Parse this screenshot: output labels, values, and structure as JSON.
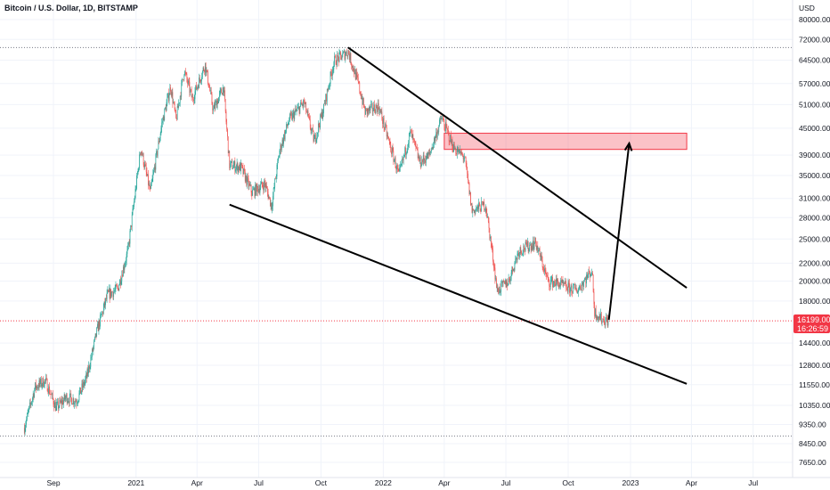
{
  "header": {
    "title": "Bitcoin / U.S. Dollar, 1D, BITSTAMP",
    "currency": "USD"
  },
  "price_tag": {
    "price": "16199.00",
    "countdown": "16:26:59",
    "color": "#f23645"
  },
  "chart_data": {
    "type": "candlestick",
    "title": "Bitcoin / U.S. Dollar, 1D, BITSTAMP",
    "ylabel": "USD",
    "yscale": "log",
    "ylim": [
      7200,
      90000
    ],
    "y_ticks": [
      "80000.00",
      "72000.00",
      "64500.00",
      "57000.00",
      "51000.00",
      "45000.00",
      "39000.00",
      "35000.00",
      "31000.00",
      "28000.00",
      "25000.00",
      "22000.00",
      "20000.00",
      "18000.00",
      "14400.00",
      "12800.00",
      "11550.00",
      "10350.00",
      "9350.00",
      "8450.00",
      "7650.00"
    ],
    "x_ticks": [
      "Sep",
      "2021",
      "Apr",
      "Jul",
      "Oct",
      "2022",
      "Apr",
      "Jul",
      "Oct",
      "2023",
      "Apr",
      "Jul"
    ],
    "up_color": "#26a69a",
    "down_color": "#ef5350",
    "series": [
      {
        "x": "2020-07-20",
        "y": 9200
      },
      {
        "x": "2020-08-05",
        "y": 11400
      },
      {
        "x": "2020-08-20",
        "y": 11800
      },
      {
        "x": "2020-09-05",
        "y": 10200
      },
      {
        "x": "2020-09-20",
        "y": 10800
      },
      {
        "x": "2020-10-05",
        "y": 10600
      },
      {
        "x": "2020-10-20",
        "y": 12000
      },
      {
        "x": "2020-11-05",
        "y": 15500
      },
      {
        "x": "2020-11-20",
        "y": 18600
      },
      {
        "x": "2020-12-05",
        "y": 19200
      },
      {
        "x": "2020-12-20",
        "y": 23500
      },
      {
        "x": "2021-01-08",
        "y": 40500
      },
      {
        "x": "2021-01-22",
        "y": 32000
      },
      {
        "x": "2021-02-08",
        "y": 46000
      },
      {
        "x": "2021-02-21",
        "y": 56000
      },
      {
        "x": "2021-03-01",
        "y": 47000
      },
      {
        "x": "2021-03-13",
        "y": 61000
      },
      {
        "x": "2021-03-25",
        "y": 52500
      },
      {
        "x": "2021-04-13",
        "y": 63000
      },
      {
        "x": "2021-04-25",
        "y": 49500
      },
      {
        "x": "2021-05-10",
        "y": 56000
      },
      {
        "x": "2021-05-19",
        "y": 37000
      },
      {
        "x": "2021-06-05",
        "y": 36500
      },
      {
        "x": "2021-06-21",
        "y": 32000
      },
      {
        "x": "2021-07-10",
        "y": 33500
      },
      {
        "x": "2021-07-20",
        "y": 29800
      },
      {
        "x": "2021-08-01",
        "y": 40000
      },
      {
        "x": "2021-08-15",
        "y": 47000
      },
      {
        "x": "2021-09-06",
        "y": 51500
      },
      {
        "x": "2021-09-21",
        "y": 42000
      },
      {
        "x": "2021-10-05",
        "y": 50000
      },
      {
        "x": "2021-10-20",
        "y": 64000
      },
      {
        "x": "2021-11-10",
        "y": 67500
      },
      {
        "x": "2021-11-25",
        "y": 57000
      },
      {
        "x": "2021-12-05",
        "y": 49000
      },
      {
        "x": "2021-12-25",
        "y": 50500
      },
      {
        "x": "2022-01-10",
        "y": 41500
      },
      {
        "x": "2022-01-24",
        "y": 35000
      },
      {
        "x": "2022-02-10",
        "y": 44000
      },
      {
        "x": "2022-02-24",
        "y": 37500
      },
      {
        "x": "2022-03-10",
        "y": 39000
      },
      {
        "x": "2022-03-28",
        "y": 47500
      },
      {
        "x": "2022-04-15",
        "y": 40500
      },
      {
        "x": "2022-05-01",
        "y": 38500
      },
      {
        "x": "2022-05-12",
        "y": 29000
      },
      {
        "x": "2022-06-01",
        "y": 30000
      },
      {
        "x": "2022-06-13",
        "y": 22000
      },
      {
        "x": "2022-06-18",
        "y": 19000
      },
      {
        "x": "2022-07-05",
        "y": 20000
      },
      {
        "x": "2022-07-20",
        "y": 23500
      },
      {
        "x": "2022-08-14",
        "y": 24500
      },
      {
        "x": "2022-09-01",
        "y": 20000
      },
      {
        "x": "2022-09-15",
        "y": 19800
      },
      {
        "x": "2022-09-30",
        "y": 19300
      },
      {
        "x": "2022-10-15",
        "y": 19100
      },
      {
        "x": "2022-11-05",
        "y": 21200
      },
      {
        "x": "2022-11-09",
        "y": 17000
      },
      {
        "x": "2022-11-20",
        "y": 16300
      },
      {
        "x": "2022-11-30",
        "y": 16199
      }
    ],
    "reference_lines": [
      {
        "y": 69000,
        "style": "dotted",
        "color": "#787b86"
      },
      {
        "y": 8800,
        "style": "dotted",
        "color": "#787b86"
      },
      {
        "y": 16199,
        "style": "dotted",
        "color": "#f23645"
      }
    ],
    "drawings": {
      "upper_trendline": {
        "from": {
          "x": "2021-11-10",
          "y": 69000
        },
        "to": {
          "x": "2023-03-25",
          "y": 19300
        }
      },
      "lower_trendline": {
        "from": {
          "x": "2021-05-19",
          "y": 30000
        },
        "to": {
          "x": "2023-03-25",
          "y": 11600
        }
      },
      "resistance_zone": {
        "x_start": "2022-04-01",
        "x_end": "2023-03-25",
        "y_low": 40200,
        "y_high": 43800,
        "color": "#f23645"
      },
      "projection_arrow": {
        "from": {
          "x": "2022-11-30",
          "y": 16300
        },
        "to": {
          "x": "2022-12-30",
          "y": 41500
        }
      }
    }
  }
}
